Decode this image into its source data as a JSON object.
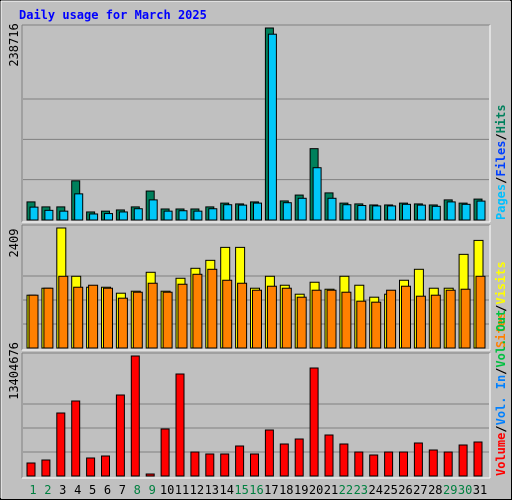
{
  "title": "Daily usage for March 2025",
  "categories": [
    "1",
    "2",
    "3",
    "4",
    "5",
    "6",
    "7",
    "8",
    "9",
    "10",
    "11",
    "12",
    "13",
    "14",
    "15",
    "16",
    "17",
    "18",
    "19",
    "20",
    "21",
    "22",
    "23",
    "24",
    "25",
    "26",
    "27",
    "28",
    "29",
    "30",
    "31"
  ],
  "category_colors": [
    "#008040",
    "#008040",
    "#000000",
    "#000000",
    "#000000",
    "#000000",
    "#000000",
    "#008040",
    "#008040",
    "#000000",
    "#000000",
    "#000000",
    "#000000",
    "#000000",
    "#008040",
    "#008040",
    "#000000",
    "#000000",
    "#000000",
    "#000000",
    "#000000",
    "#008040",
    "#008040",
    "#000000",
    "#000000",
    "#000000",
    "#000000",
    "#000000",
    "#008040",
    "#008040",
    "#000000"
  ],
  "chart_data": [
    {
      "type": "bar",
      "ylim": [
        0,
        238716
      ],
      "yticks": [
        238716
      ],
      "legend": [
        {
          "text": "Pages",
          "color": "#00c0ff"
        },
        {
          "text": "/",
          "color": "#000000"
        },
        {
          "text": "Files",
          "color": "#0040ff"
        },
        {
          "text": "/",
          "color": "#000000"
        },
        {
          "text": "Hits",
          "color": "#00805c"
        }
      ],
      "series": [
        {
          "name": "Hits",
          "color": "#00805c",
          "values": [
            22500,
            16300,
            16300,
            48700,
            10000,
            11000,
            12500,
            16300,
            36000,
            13700,
            13700,
            13700,
            16300,
            21000,
            20000,
            22500,
            238716,
            23700,
            31000,
            88700,
            33700,
            21000,
            20000,
            18700,
            18700,
            21000,
            20000,
            18700,
            25000,
            21000,
            26000
          ]
        },
        {
          "name": "Files",
          "color": "#00c8f8",
          "values": [
            16000,
            12000,
            11000,
            32500,
            7500,
            8000,
            10000,
            14000,
            25000,
            11000,
            11500,
            11000,
            14000,
            19000,
            18500,
            21000,
            231000,
            21500,
            27000,
            65000,
            27000,
            19000,
            18000,
            17500,
            17500,
            19500,
            18500,
            17000,
            22500,
            19500,
            23500
          ]
        }
      ]
    },
    {
      "type": "bar",
      "ylim": [
        0,
        2409
      ],
      "yticks": [
        2409
      ],
      "legend": [
        {
          "text": "Sites",
          "color": "#ff8000"
        },
        {
          "text": "/",
          "color": "#000000"
        },
        {
          "text": "Visits",
          "color": "#ffff00"
        }
      ],
      "series": [
        {
          "name": "Visits",
          "color": "#ffff00",
          "values": [
            1060,
            1200,
            2409,
            1440,
            1220,
            1220,
            1100,
            1140,
            1520,
            1140,
            1400,
            1600,
            1760,
            2020,
            2020,
            1200,
            1440,
            1260,
            1080,
            1320,
            1180,
            1440,
            1260,
            1020,
            1080,
            1360,
            1580,
            1200,
            1200,
            1880,
            2160
          ]
        },
        {
          "name": "Sites",
          "color": "#ff8000",
          "values": [
            1060,
            1200,
            1440,
            1220,
            1260,
            1200,
            1000,
            1120,
            1300,
            1120,
            1280,
            1480,
            1580,
            1360,
            1300,
            1160,
            1240,
            1200,
            1020,
            1160,
            1160,
            1120,
            940,
            920,
            1160,
            1240,
            1040,
            1060,
            1160,
            1180,
            1440
          ]
        }
      ]
    },
    {
      "type": "bar",
      "ylim": [
        0,
        13404676
      ],
      "yticks": [
        13404676
      ],
      "legend": [
        {
          "text": "Volume",
          "color": "#ff0000"
        },
        {
          "text": "/",
          "color": "#000000"
        },
        {
          "text": "Vol. In",
          "color": "#0080ff"
        },
        {
          "text": "/",
          "color": "#000000"
        },
        {
          "text": "Vol. Out",
          "color": "#00c040"
        }
      ],
      "series": [
        {
          "name": "Volume",
          "color": "#ff0000",
          "values": [
            1452000,
            1787000,
            7037000,
            8378000,
            2011000,
            2234000,
            9048000,
            13404676,
            223000,
            5250000,
            11394000,
            2681000,
            2458000,
            2458000,
            3351000,
            2458000,
            5138000,
            3575000,
            4133000,
            12064000,
            4580000,
            3575000,
            2681000,
            2346000,
            2681000,
            2681000,
            3686000,
            2904000,
            2681000,
            3463000,
            3798000
          ]
        }
      ]
    }
  ]
}
